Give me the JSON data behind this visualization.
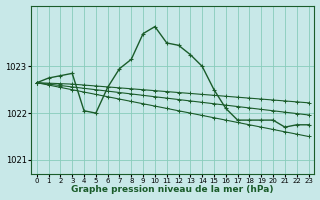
{
  "xlabel": "Graphe pression niveau de la mer (hPa)",
  "bg_color": "#c8e8e8",
  "plot_bg_color": "#c8e8e8",
  "grid_color": "#88ccbb",
  "line_color": "#1a5c2a",
  "xlim": [
    -0.5,
    23.5
  ],
  "ylim": [
    1020.7,
    1024.3
  ],
  "yticks": [
    1021,
    1022,
    1023
  ],
  "xticks": [
    0,
    1,
    2,
    3,
    4,
    5,
    6,
    7,
    8,
    9,
    10,
    11,
    12,
    13,
    14,
    15,
    16,
    17,
    18,
    19,
    20,
    21,
    22,
    23
  ],
  "series": [
    [
      1022.65,
      1022.75,
      1022.8,
      1022.85,
      1022.05,
      1022.0,
      1022.55,
      1022.95,
      1023.15,
      1023.7,
      1023.85,
      1023.5,
      1023.45,
      1023.25,
      1023.0,
      1022.5,
      1022.1,
      1021.85,
      1021.85,
      1021.85,
      1021.85,
      1021.7,
      1021.75,
      1021.75
    ],
    [
      1022.65,
      1022.6,
      1022.55,
      1022.5,
      1022.45,
      1022.4,
      1022.35,
      1022.3,
      1022.25,
      1022.2,
      1022.15,
      1022.1,
      1022.05,
      1022.0,
      1021.95,
      1021.9,
      1021.85,
      1021.8,
      1021.75,
      1021.7,
      1021.65,
      1021.6,
      1021.55,
      1021.5
    ],
    [
      1022.65,
      1022.62,
      1022.59,
      1022.56,
      1022.53,
      1022.5,
      1022.47,
      1022.44,
      1022.41,
      1022.38,
      1022.35,
      1022.32,
      1022.29,
      1022.26,
      1022.23,
      1022.2,
      1022.17,
      1022.14,
      1022.11,
      1022.08,
      1022.05,
      1022.02,
      1021.99,
      1021.96
    ],
    [
      1022.65,
      1022.64,
      1022.63,
      1022.62,
      1022.6,
      1022.58,
      1022.56,
      1022.54,
      1022.52,
      1022.5,
      1022.48,
      1022.46,
      1022.44,
      1022.42,
      1022.4,
      1022.38,
      1022.36,
      1022.34,
      1022.32,
      1022.3,
      1022.28,
      1022.26,
      1022.24,
      1022.22
    ]
  ]
}
